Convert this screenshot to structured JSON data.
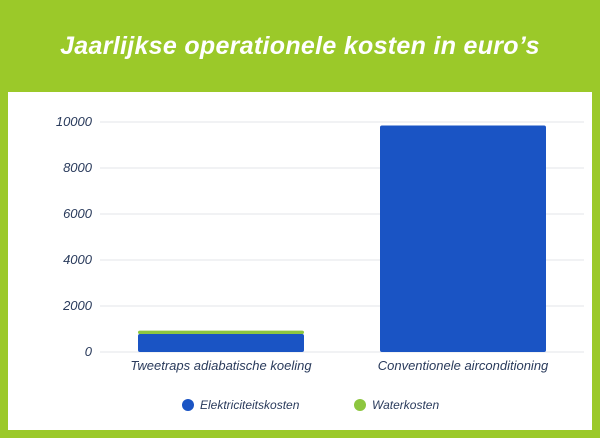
{
  "header": {
    "title": "Jaarlijkse operationele kosten in euro’s"
  },
  "colors": {
    "background": "#9BC929",
    "panel": "#ffffff",
    "electricity": "#1A54C4",
    "water": "#8DC63F",
    "grid": "#e3e6ea",
    "text": "#2a3b5c"
  },
  "chart_data": {
    "type": "bar",
    "stacked": true,
    "title": "Jaarlijkse operationele kosten in euro’s",
    "xlabel": "",
    "ylabel": "",
    "categories": [
      "Tweetraps adiabatische koeling",
      "Conventionele airconditioning"
    ],
    "series": [
      {
        "name": "Elektriciteitskosten",
        "values": [
          780,
          9850
        ],
        "color": "#1A54C4"
      },
      {
        "name": "Waterkosten",
        "values": [
          150,
          0
        ],
        "color": "#8DC63F"
      }
    ],
    "ylim": [
      0,
      10000
    ],
    "yticks": [
      0,
      2000,
      4000,
      6000,
      8000,
      10000
    ],
    "grid": true,
    "legend": "bottom"
  }
}
